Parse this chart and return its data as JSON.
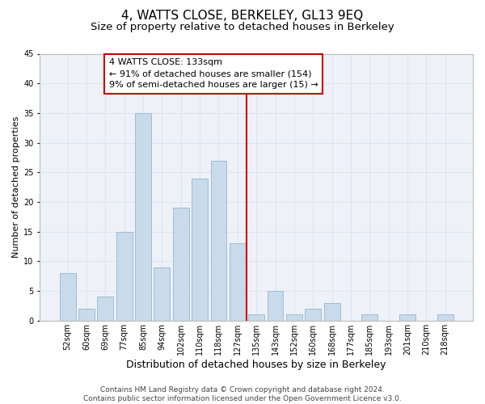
{
  "title": "4, WATTS CLOSE, BERKELEY, GL13 9EQ",
  "subtitle": "Size of property relative to detached houses in Berkeley",
  "xlabel": "Distribution of detached houses by size in Berkeley",
  "ylabel": "Number of detached properties",
  "categories": [
    "52sqm",
    "60sqm",
    "69sqm",
    "77sqm",
    "85sqm",
    "94sqm",
    "102sqm",
    "110sqm",
    "118sqm",
    "127sqm",
    "135sqm",
    "143sqm",
    "152sqm",
    "160sqm",
    "168sqm",
    "177sqm",
    "185sqm",
    "193sqm",
    "201sqm",
    "210sqm",
    "218sqm"
  ],
  "values": [
    8,
    2,
    4,
    15,
    35,
    9,
    19,
    24,
    27,
    13,
    1,
    5,
    1,
    2,
    3,
    0,
    1,
    0,
    1,
    0,
    1
  ],
  "bar_color": "#c9daea",
  "bar_edge_color": "#a0bcd4",
  "grid_color": "#dce6f0",
  "bg_color": "#eef2f8",
  "reference_line_x": 9.5,
  "annotation_text": "4 WATTS CLOSE: 133sqm\n← 91% of detached houses are smaller (154)\n9% of semi-detached houses are larger (15) →",
  "annotation_box_color": "#cc0000",
  "ylim": [
    0,
    45
  ],
  "yticks": [
    0,
    5,
    10,
    15,
    20,
    25,
    30,
    35,
    40,
    45
  ],
  "footer": "Contains HM Land Registry data © Crown copyright and database right 2024.\nContains public sector information licensed under the Open Government Licence v3.0.",
  "title_fontsize": 11,
  "subtitle_fontsize": 9.5,
  "xlabel_fontsize": 9,
  "ylabel_fontsize": 8,
  "tick_fontsize": 7,
  "annotation_fontsize": 8,
  "footer_fontsize": 6.5
}
